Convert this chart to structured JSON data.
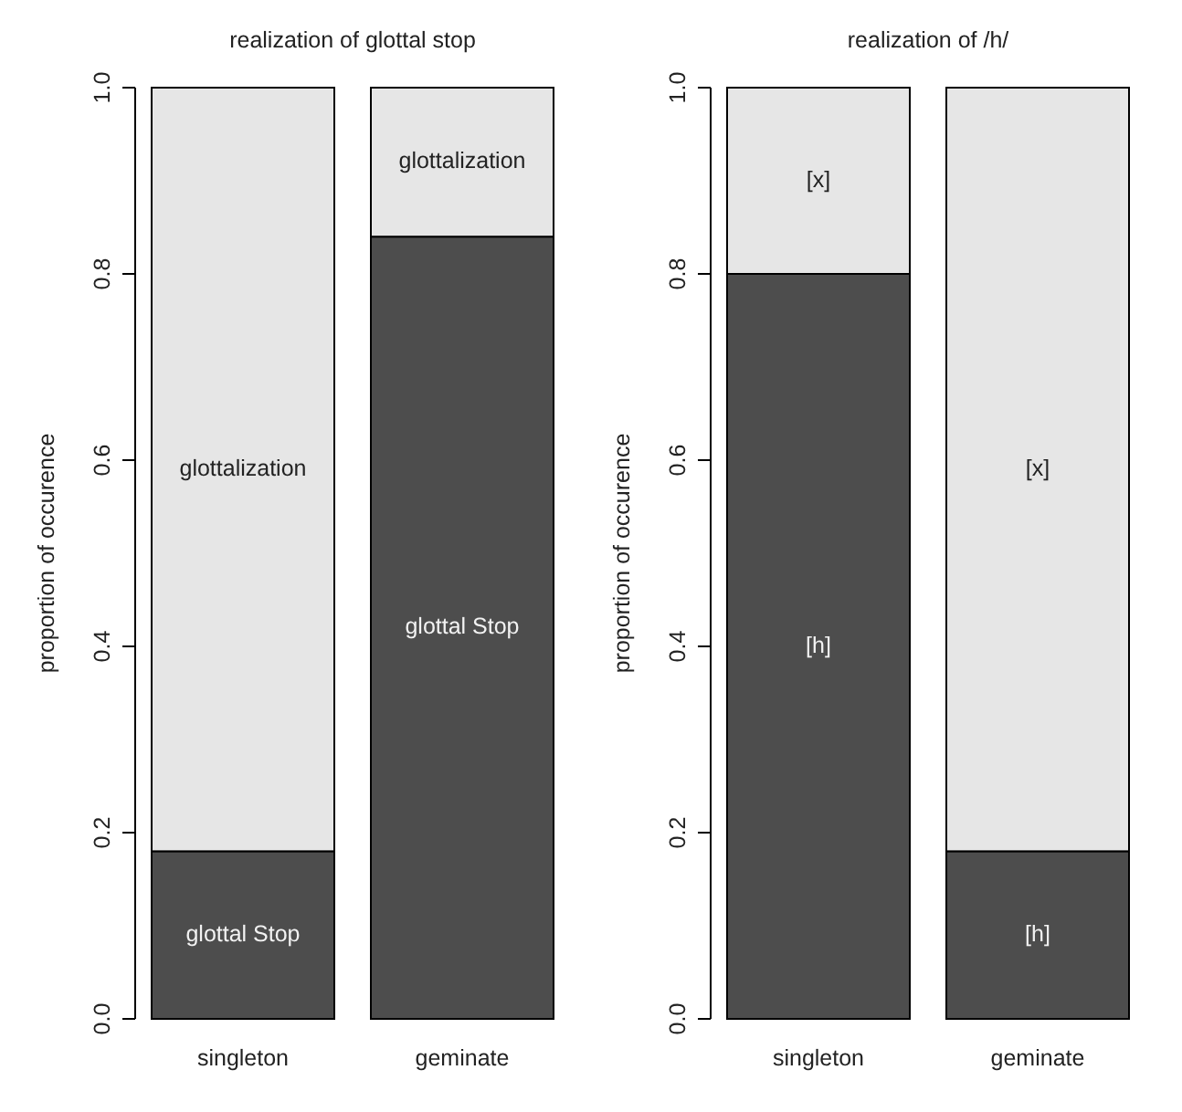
{
  "chart_data": [
    {
      "type": "bar",
      "title": "realization of glottal stop",
      "ylabel": "proportion of occurence",
      "categories": [
        "singleton",
        "geminate"
      ],
      "stacked": true,
      "ylim": [
        0,
        1
      ],
      "yticks": [
        {
          "value": 0,
          "label": "0.0"
        },
        {
          "value": 0.2,
          "label": "0.2"
        },
        {
          "value": 0.4,
          "label": "0.4"
        },
        {
          "value": 0.6,
          "label": "0.6"
        },
        {
          "value": 0.8,
          "label": "0.8"
        },
        {
          "value": 1,
          "label": "1.0"
        }
      ],
      "series": [
        {
          "name": "glottal Stop",
          "color": "#4d4d4d",
          "values": [
            0.18,
            0.84
          ]
        },
        {
          "name": "glottalization",
          "color": "#e6e6e6",
          "values": [
            0.82,
            0.16
          ]
        }
      ]
    },
    {
      "type": "bar",
      "title": "realization of /h/",
      "ylabel": "proportion of occurence",
      "categories": [
        "singleton",
        "geminate"
      ],
      "stacked": true,
      "ylim": [
        0,
        1
      ],
      "yticks": [
        {
          "value": 0,
          "label": "0.0"
        },
        {
          "value": 0.2,
          "label": "0.2"
        },
        {
          "value": 0.4,
          "label": "0.4"
        },
        {
          "value": 0.6,
          "label": "0.6"
        },
        {
          "value": 0.8,
          "label": "0.8"
        },
        {
          "value": 1,
          "label": "1.0"
        }
      ],
      "series": [
        {
          "name": "[h]",
          "color": "#4d4d4d",
          "values": [
            0.8,
            0.18
          ]
        },
        {
          "name": "[x]",
          "color": "#e6e6e6",
          "values": [
            0.2,
            0.82
          ]
        }
      ]
    }
  ]
}
